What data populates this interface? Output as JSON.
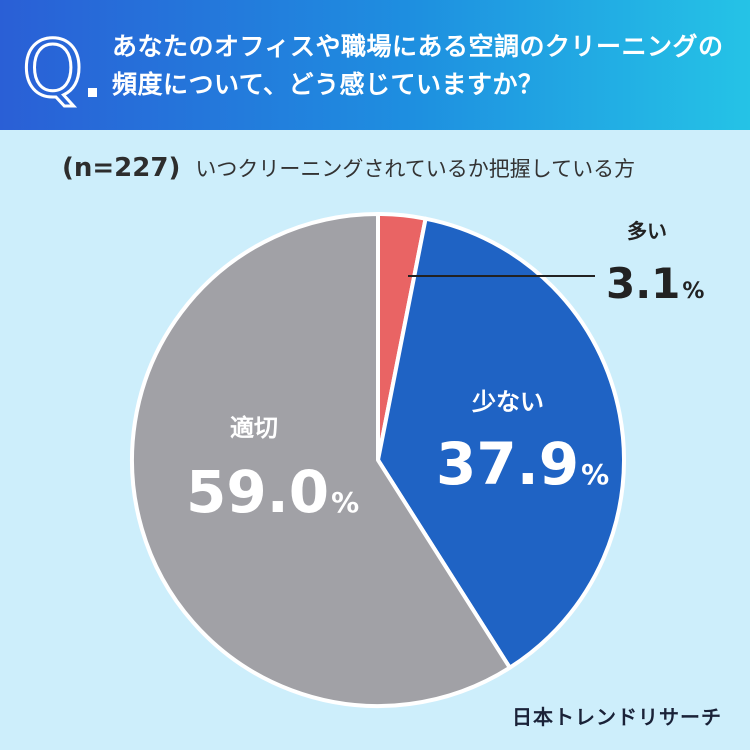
{
  "header": {
    "q_letter": "Q",
    "question": "あなたのオフィスや職場にある空調のクリーニングの頻度について、どう感じていますか？"
  },
  "subtitle": {
    "n_label": "(n=227)",
    "text": "いつクリーニングされているか把握している方"
  },
  "chart_data": {
    "type": "pie",
    "categories": [
      "多い",
      "少ない",
      "適切"
    ],
    "values": [
      3.1,
      37.9,
      59.0
    ],
    "value_labels": [
      "3.1",
      "37.9",
      "59.0"
    ],
    "unit": "%",
    "colors": [
      "#e96464",
      "#1f63c4",
      "#a1a1a6"
    ],
    "start": "12 o'clock, clockwise"
  },
  "brand": "日本トレンドリサーチ"
}
